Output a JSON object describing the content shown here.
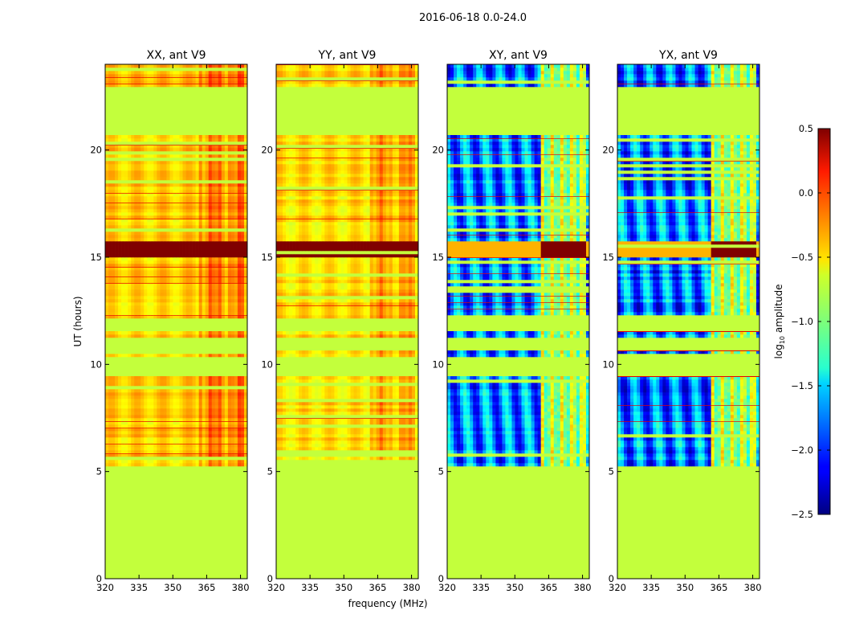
{
  "chart_data": {
    "type": "heatmap",
    "title": "2016-06-18 0.0-24.0",
    "xlabel": "frequency (MHz)",
    "ylabel": "UT (hours)",
    "xlim": [
      320,
      383
    ],
    "ylim": [
      0,
      24
    ],
    "x_ticks": [
      "320",
      "335",
      "350",
      "365",
      "380"
    ],
    "x_tick_values": [
      320,
      335,
      350,
      365,
      380
    ],
    "y_ticks": [
      "0",
      "5",
      "10",
      "15",
      "20"
    ],
    "y_tick_values": [
      0,
      5,
      10,
      15,
      20
    ],
    "colorbar": {
      "label_main": "log",
      "label_sub": "10",
      "label_rest": " amplitude",
      "min": -2.5,
      "max": 0.5,
      "ticks": [
        "0.5",
        "0.0",
        "−0.5",
        "−1.0",
        "−1.5",
        "−2.0",
        "−2.5"
      ],
      "tick_values": [
        0.5,
        0.0,
        -0.5,
        -1.0,
        -1.5,
        -2.0,
        -2.5
      ]
    },
    "fill_value": -0.8,
    "data_time_ranges": [
      [
        5.3,
        9.4
      ],
      [
        10.4,
        10.6
      ],
      [
        11.2,
        11.5
      ],
      [
        12.2,
        20.7
      ],
      [
        22.9,
        24.0
      ]
    ],
    "strong_band": [
      15.0,
      15.8
    ],
    "rfi_freq_range": [
      362,
      381
    ],
    "panels": [
      {
        "title": "XX, ant V9",
        "base": -0.5,
        "rfi_shift": 0.35,
        "kind": "parallel"
      },
      {
        "title": "YY, ant V9",
        "base": -0.55,
        "rfi_shift": 0.25,
        "kind": "parallel"
      },
      {
        "title": "XY, ant V9",
        "base": -1.75,
        "rfi_shift": 1.0,
        "kind": "cross"
      },
      {
        "title": "YX, ant V9",
        "base": -1.8,
        "rfi_shift": 1.0,
        "kind": "cross"
      }
    ]
  }
}
